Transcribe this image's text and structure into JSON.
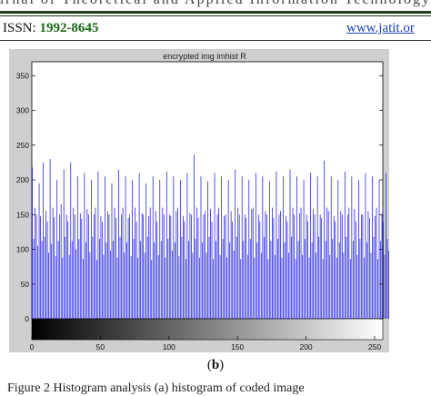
{
  "header": {
    "journal_strip": "Journal of Theoretical and Applied Information Technology",
    "issn_label": "ISSN:",
    "issn_number": "1992-8645",
    "url": "www.jatit.or"
  },
  "figure": {
    "letter": "b",
    "caption": "Figure 2 Histogram analysis (a) histogram of coded image"
  },
  "colors": {
    "bar": "#2020e0",
    "plot_bg": "#ffffff",
    "panel_bg": "#cfcfcf"
  },
  "chart_data": {
    "type": "bar",
    "title": "encrypted img imhist R",
    "xlabel": "",
    "ylabel": "",
    "xlim": [
      0,
      256
    ],
    "ylim": [
      0,
      370
    ],
    "x_ticks": [
      0,
      50,
      100,
      150,
      200,
      250
    ],
    "y_ticks": [
      0,
      50,
      100,
      150,
      200,
      250,
      300,
      350
    ],
    "grid": false,
    "colorbar": "grayscale gradient below x-axis",
    "values": [
      218,
      115,
      160,
      150,
      105,
      195,
      148,
      112,
      225,
      118,
      155,
      140,
      95,
      230,
      108,
      160,
      146,
      90,
      200,
      112,
      150,
      165,
      88,
      215,
      118,
      150,
      140,
      92,
      225,
      112,
      160,
      150,
      100,
      205,
      115,
      152,
      144,
      86,
      210,
      110,
      158,
      150,
      96,
      200,
      118,
      150,
      160,
      85,
      212,
      115,
      148,
      140,
      92,
      205,
      110,
      155,
      150,
      98,
      195,
      112,
      160,
      145,
      88,
      215,
      118,
      150,
      160,
      95,
      205,
      110,
      145,
      150,
      90,
      200,
      115,
      160,
      140,
      88,
      210,
      112,
      152,
      150,
      95,
      195,
      118,
      148,
      160,
      85,
      205,
      110,
      155,
      140,
      92,
      200,
      112,
      160,
      150,
      88,
      212,
      115,
      150,
      148,
      98,
      205,
      110,
      155,
      160,
      90,
      200,
      118,
      148,
      140,
      86,
      210,
      112,
      152,
      150,
      95,
      236,
      115,
      160,
      145,
      88,
      205,
      110,
      150,
      155,
      95,
      198,
      118,
      158,
      140,
      86,
      210,
      112,
      150,
      160,
      92,
      205,
      115,
      148,
      150,
      88,
      200,
      110,
      155,
      140,
      98,
      215,
      118,
      160,
      150,
      86,
      205,
      112,
      150,
      145,
      92,
      200,
      115,
      158,
      160,
      88,
      210,
      110,
      150,
      140,
      95,
      205,
      118,
      155,
      150,
      86,
      198,
      112,
      160,
      145,
      92,
      212,
      115,
      150,
      155,
      88,
      205,
      110,
      148,
      140,
      95,
      215,
      118,
      160,
      150,
      86,
      205,
      112,
      152,
      160,
      92,
      200,
      115,
      150,
      140,
      88,
      210,
      110,
      158,
      150,
      95,
      205,
      118,
      150,
      145,
      86,
      228,
      112,
      160,
      155,
      92,
      205,
      115,
      148,
      140,
      88,
      200,
      110,
      155,
      150,
      95,
      212,
      118,
      150,
      160,
      86,
      205,
      112,
      158,
      140,
      92,
      200,
      115,
      150,
      150,
      88,
      210,
      110,
      155,
      145,
      95,
      205,
      118,
      148,
      160,
      86,
      200,
      112,
      150,
      140,
      92,
      210,
      115,
      98
    ]
  }
}
